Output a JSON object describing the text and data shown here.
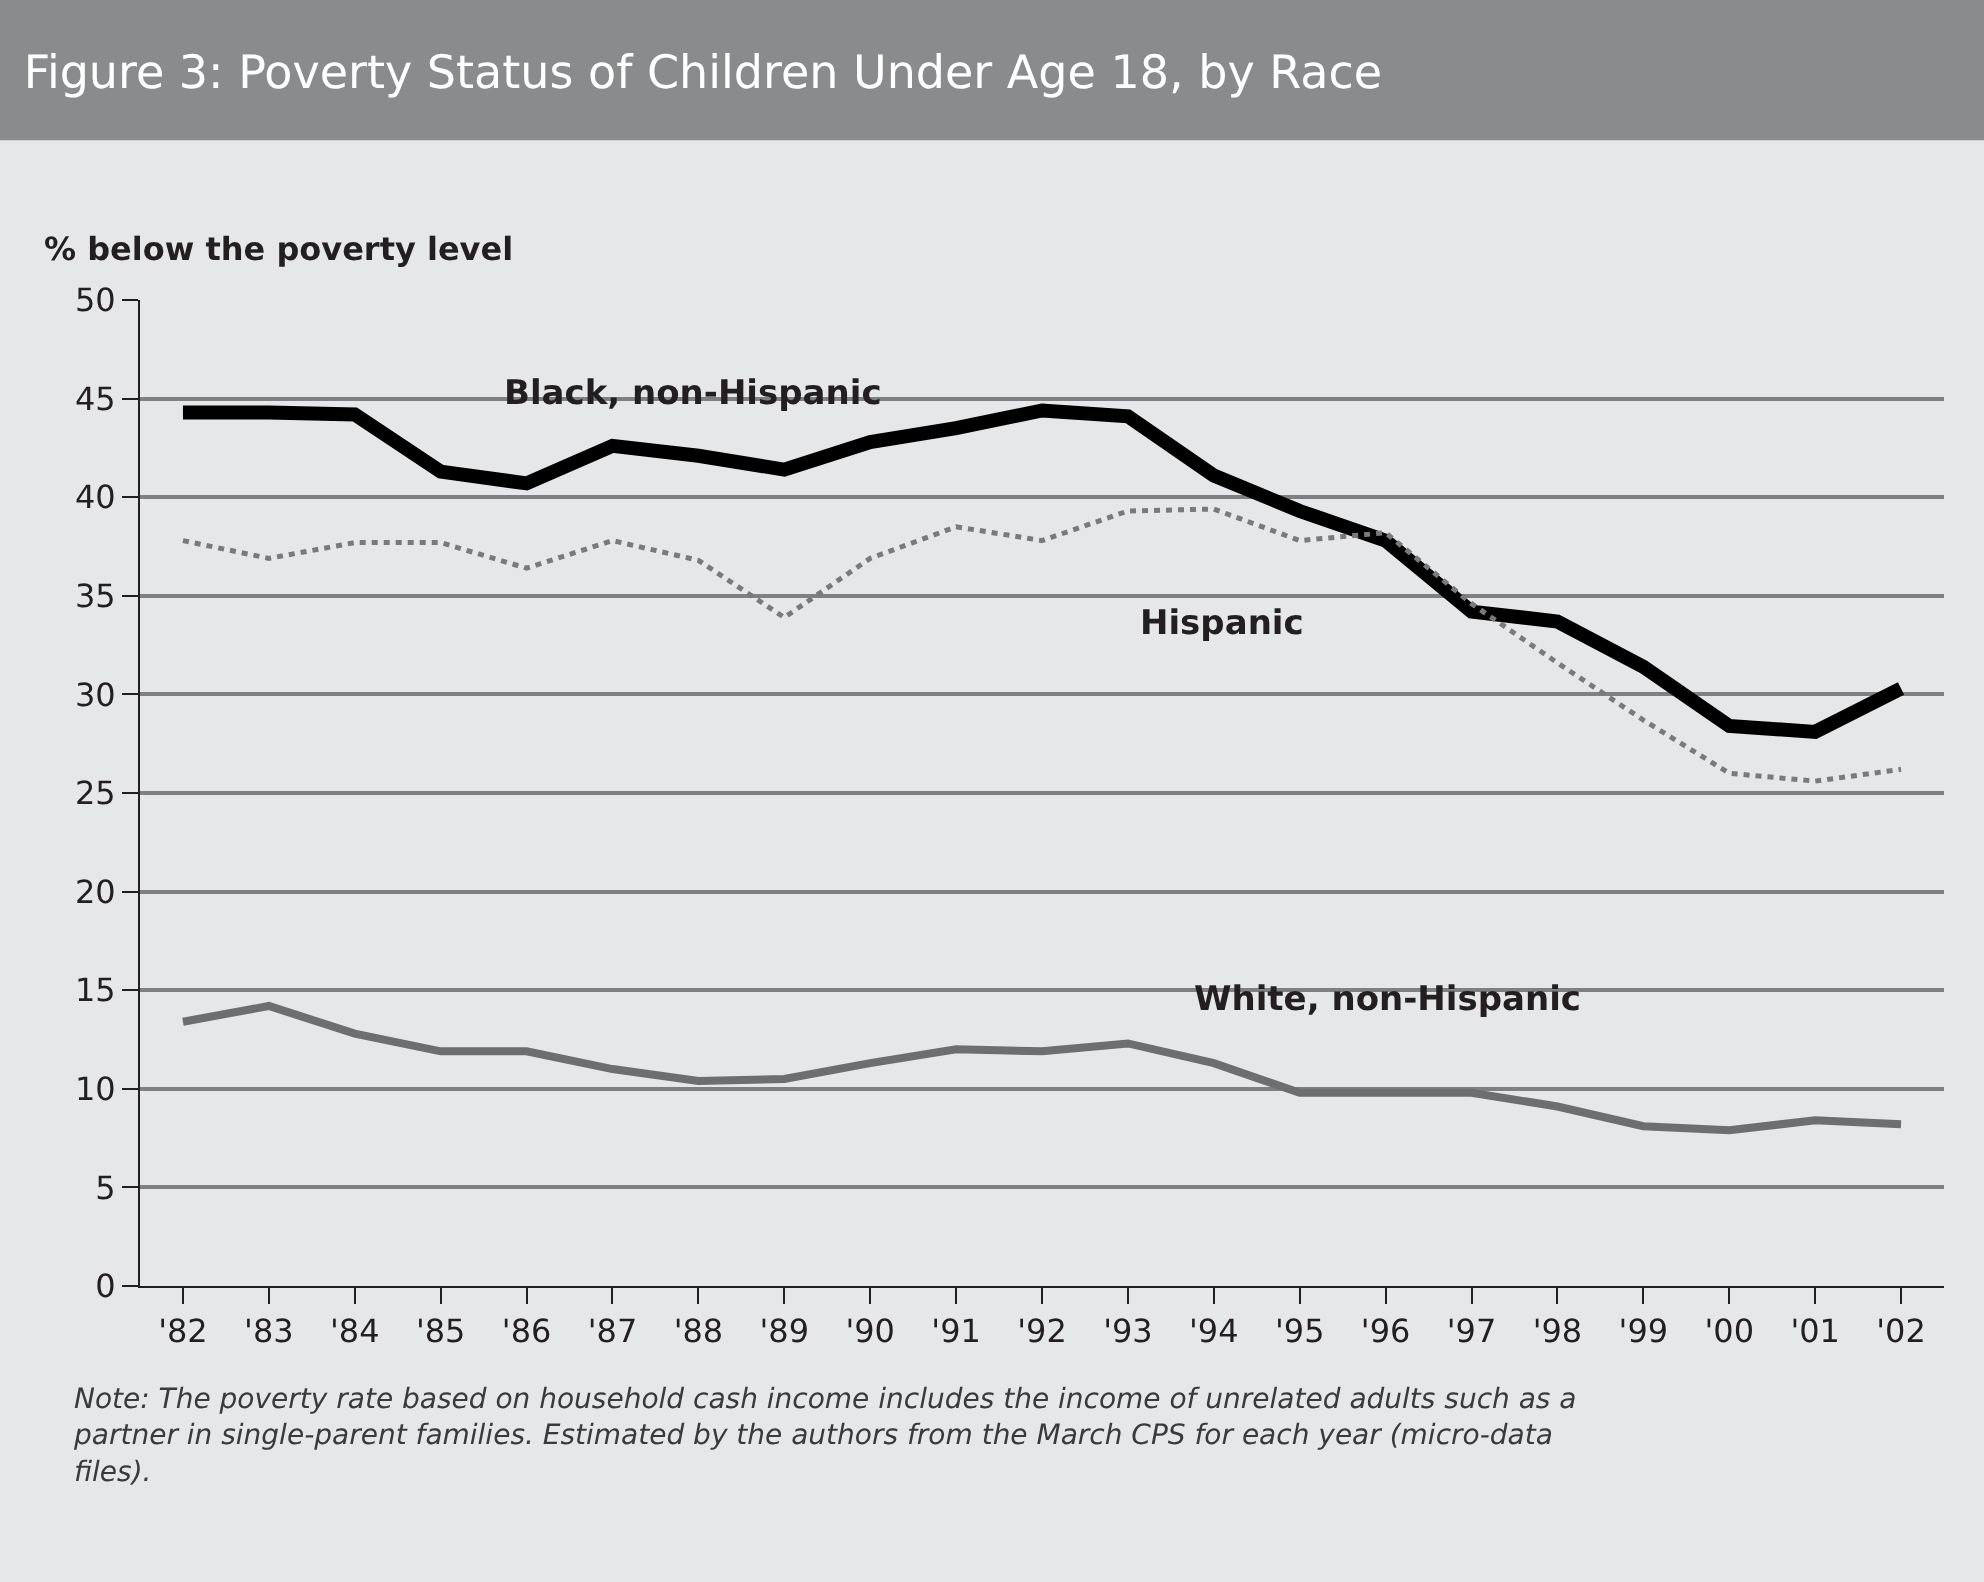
{
  "chart_data": {
    "type": "line",
    "title": "Figure 3: Poverty Status of Children Under Age 18, by Race",
    "ylabel": "% below the poverty level",
    "categories": [
      "'82",
      "'83",
      "'84",
      "'85",
      "'86",
      "'87",
      "'88",
      "'89",
      "'90",
      "'91",
      "'92",
      "'93",
      "'94",
      "'95",
      "'96",
      "'97",
      "'98",
      "'99",
      "'00",
      "'01",
      "'02"
    ],
    "series": [
      {
        "name": "Black, non-Hispanic",
        "color": "#000000",
        "line_style": "solid",
        "values": [
          44.3,
          44.3,
          44.2,
          41.3,
          40.7,
          42.6,
          42.1,
          41.4,
          42.8,
          43.5,
          44.4,
          44.1,
          41.1,
          39.3,
          37.8,
          34.2,
          33.7,
          31.4,
          28.4,
          28.1,
          30.3
        ]
      },
      {
        "name": "Hispanic",
        "color": "#7a7a7c",
        "line_style": "dotted",
        "values": [
          37.8,
          36.9,
          37.7,
          37.7,
          36.4,
          37.8,
          36.8,
          33.9,
          36.9,
          38.5,
          37.8,
          39.3,
          39.4,
          37.8,
          38.2,
          34.6,
          31.6,
          28.7,
          26.0,
          25.6,
          26.2
        ]
      },
      {
        "name": "White, non-Hispanic",
        "color": "#6d6e70",
        "line_style": "solid",
        "values": [
          13.4,
          14.2,
          12.8,
          11.9,
          11.9,
          11.0,
          10.4,
          10.5,
          11.3,
          12.0,
          11.9,
          12.3,
          11.3,
          9.8,
          9.8,
          9.8,
          9.1,
          8.1,
          7.9,
          8.4,
          8.2
        ]
      }
    ],
    "ylim": [
      0,
      50
    ],
    "yticks": [
      0,
      5,
      10,
      15,
      20,
      25,
      30,
      35,
      40,
      45,
      50
    ],
    "grid": "y",
    "legend": false,
    "marker": "none",
    "annotations": [
      "Note: The poverty rate based on household cash income includes the income of unrelated adults such as a partner in single-parent families. Estimated by the authors from the March CPS for each year (micro-data files)."
    ]
  }
}
